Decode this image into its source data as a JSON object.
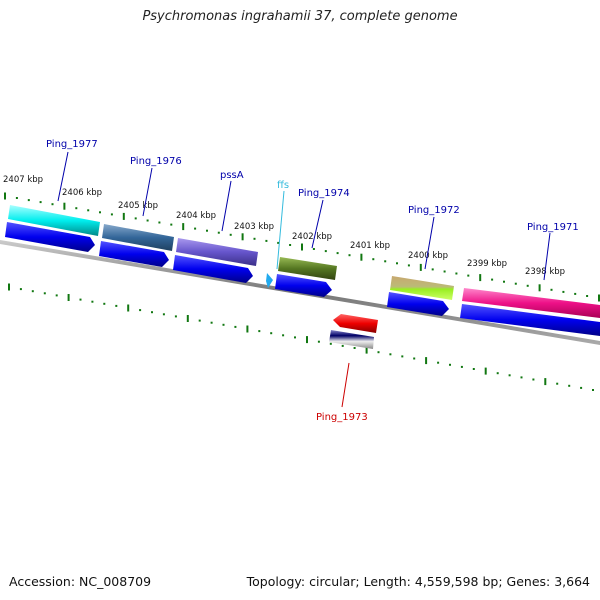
{
  "title": "Psychromonas ingrahamii 37, complete genome",
  "footer": {
    "accession": "Accession: NC_008709",
    "summary": "Topology: circular; Length: 4,559,598 bp; Genes: 3,664"
  },
  "colors": {
    "cds_blue": "#0000ee",
    "label_blue": "#0000aa",
    "label_red": "#cc0000",
    "label_cyan": "#33bbdd",
    "tick_green": "#117711",
    "backbone": "#888888"
  },
  "kbp_labels": [
    "2407 kbp",
    "2406 kbp",
    "2405 kbp",
    "2404 kbp",
    "2403 kbp",
    "2402 kbp",
    "2401 kbp",
    "2400 kbp",
    "2399 kbp",
    "2398 kbp"
  ],
  "genes": [
    {
      "name": "Ping_1977",
      "color": "label_blue"
    },
    {
      "name": "Ping_1976",
      "color": "label_blue"
    },
    {
      "name": "pssA",
      "color": "label_blue"
    },
    {
      "name": "ffs",
      "color": "label_cyan"
    },
    {
      "name": "Ping_1974",
      "color": "label_blue"
    },
    {
      "name": "Ping_1972",
      "color": "label_blue"
    },
    {
      "name": "Ping_1971",
      "color": "label_blue"
    },
    {
      "name": "Ping_1973",
      "color": "label_red"
    }
  ]
}
